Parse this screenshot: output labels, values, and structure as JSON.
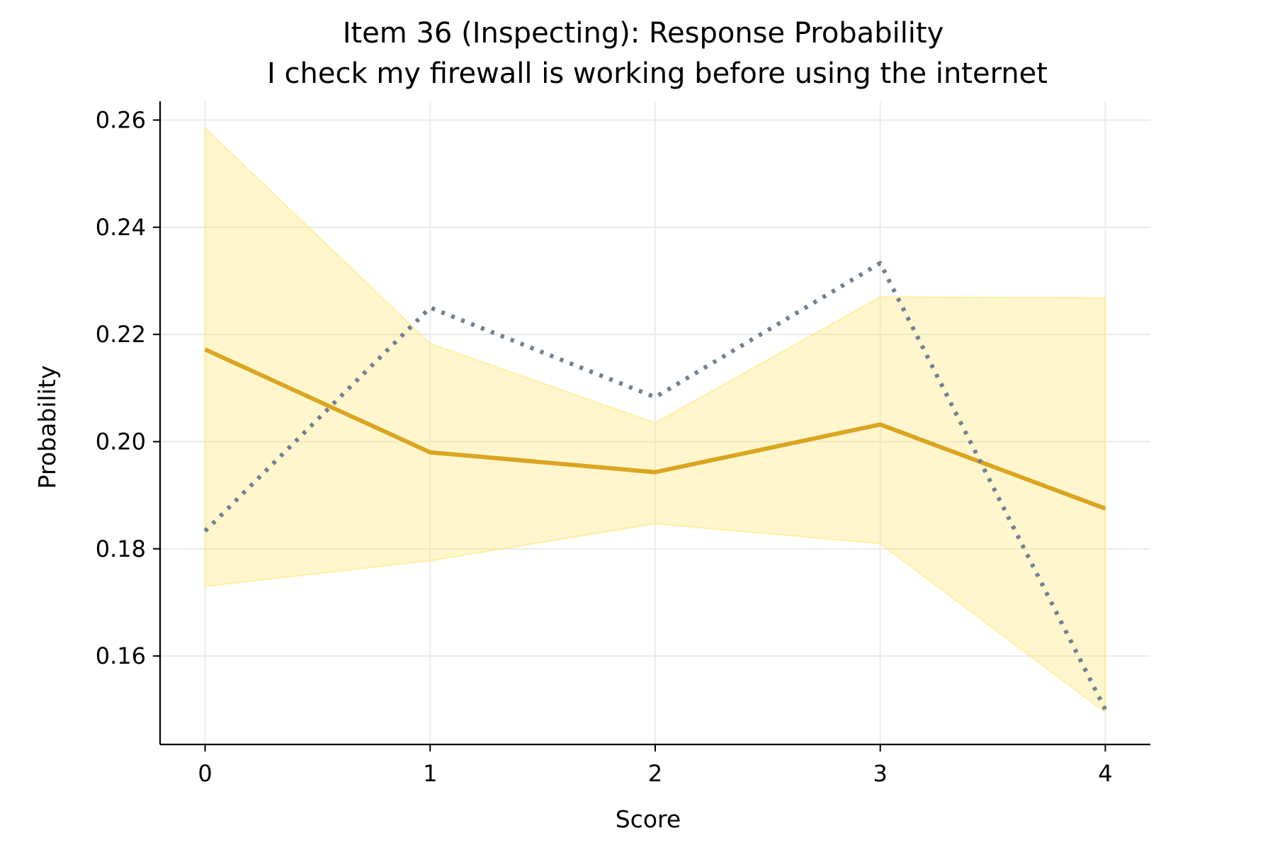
{
  "chart_data": {
    "type": "line",
    "title": "Item 36 (Inspecting): Response Probability",
    "subtitle": "I check my firewall is working before using the internet",
    "xlabel": "Score",
    "ylabel": "Probability",
    "x": [
      0,
      1,
      2,
      3,
      4
    ],
    "x_tick_labels": [
      "0",
      "1",
      "2",
      "3",
      "4"
    ],
    "y_ticks": [
      0.16,
      0.18,
      0.2,
      0.22,
      0.24,
      0.26
    ],
    "y_tick_labels": [
      "0.16",
      "0.18",
      "0.20",
      "0.22",
      "0.24",
      "0.26"
    ],
    "xlim": [
      -0.2,
      4.2
    ],
    "ylim": [
      0.1435,
      0.2635
    ],
    "grid": true,
    "series": [
      {
        "key": "mean",
        "style": "solid",
        "color": "#DAA520",
        "values": [
          0.2172,
          0.198,
          0.1943,
          0.2032,
          0.1875
        ]
      },
      {
        "key": "observed",
        "style": "dotted",
        "color": "#708090",
        "values": [
          0.1833,
          0.225,
          0.2083,
          0.2333,
          0.15
        ]
      }
    ],
    "band": {
      "color": "#FFE87C",
      "upper": [
        0.2585,
        0.2183,
        0.2035,
        0.227,
        0.2268
      ],
      "lower": [
        0.173,
        0.1778,
        0.1847,
        0.181,
        0.1495
      ]
    }
  }
}
